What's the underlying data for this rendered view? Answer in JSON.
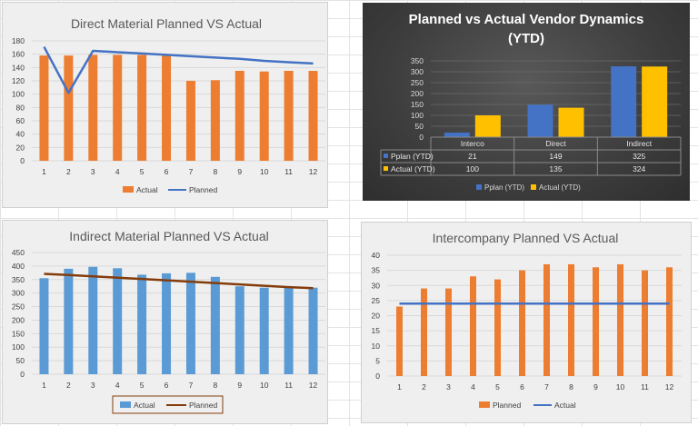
{
  "chart_data": [
    {
      "type": "bar",
      "title": "Direct Material Planned VS Actual",
      "categories": [
        "1",
        "2",
        "3",
        "4",
        "5",
        "6",
        "7",
        "8",
        "9",
        "10",
        "11",
        "12"
      ],
      "ylim": [
        0,
        180
      ],
      "yticks": [
        0,
        20,
        40,
        60,
        80,
        100,
        120,
        140,
        160,
        180
      ],
      "series": [
        {
          "name": "Actual",
          "kind": "bar",
          "color": "#ed7d31",
          "values": [
            158,
            158,
            159,
            159,
            159,
            158,
            120,
            121,
            135,
            134,
            135,
            135
          ]
        },
        {
          "name": "Planned",
          "kind": "line",
          "color": "#4472c4",
          "values": [
            171,
            102,
            165,
            163,
            161,
            159,
            157,
            155,
            153,
            150,
            148,
            146
          ]
        }
      ],
      "legend": "bottom",
      "grid": true
    },
    {
      "type": "bar",
      "title": "Planned vs Actual Vendor Dynamics (YTD)",
      "title_lines": [
        "Planned vs Actual Vendor Dynamics",
        "(YTD)"
      ],
      "categories": [
        "Interco",
        "Direct",
        "Indirect"
      ],
      "ylim": [
        0,
        350
      ],
      "yticks": [
        0,
        50,
        100,
        150,
        200,
        250,
        300,
        350
      ],
      "series": [
        {
          "name": "Pplan (YTD)",
          "color": "#4472c4",
          "values": [
            21,
            149,
            325
          ]
        },
        {
          "name": "Actual (YTD)",
          "color": "#ffc000",
          "values": [
            100,
            135,
            324
          ]
        }
      ],
      "data_table": true,
      "legend": "bottom",
      "grid": true
    },
    {
      "type": "bar",
      "title": "Indirect Material Planned VS Actual",
      "categories": [
        "1",
        "2",
        "3",
        "4",
        "5",
        "6",
        "7",
        "8",
        "9",
        "10",
        "11",
        "12"
      ],
      "ylim": [
        0,
        450
      ],
      "yticks": [
        0,
        50,
        100,
        150,
        200,
        250,
        300,
        350,
        400,
        450
      ],
      "series": [
        {
          "name": "Actual",
          "kind": "bar",
          "color": "#5b9bd5",
          "values": [
            355,
            390,
            397,
            392,
            368,
            373,
            375,
            360,
            325,
            320,
            320,
            320
          ]
        },
        {
          "name": "Planned",
          "kind": "line",
          "color": "#843c0c",
          "values": [
            371,
            367,
            362,
            357,
            352,
            347,
            342,
            337,
            332,
            327,
            322,
            318
          ]
        }
      ],
      "legend": "bottom",
      "grid": true
    },
    {
      "type": "bar",
      "title": "Intercompany Planned VS Actual",
      "categories": [
        "1",
        "2",
        "3",
        "4",
        "5",
        "6",
        "7",
        "8",
        "9",
        "10",
        "11",
        "12"
      ],
      "ylim": [
        0,
        40
      ],
      "yticks": [
        0,
        5,
        10,
        15,
        20,
        25,
        30,
        35,
        40
      ],
      "series": [
        {
          "name": "Planned",
          "kind": "bar",
          "color": "#ed7d31",
          "values": [
            23,
            29,
            29,
            33,
            32,
            35,
            37,
            37,
            36,
            37,
            35,
            36
          ]
        },
        {
          "name": "Actual",
          "kind": "line",
          "color": "#4472c4",
          "values": [
            24,
            24,
            24,
            24,
            24,
            24,
            24,
            24,
            24,
            24,
            24,
            24
          ]
        }
      ],
      "legend": "bottom",
      "grid": true
    }
  ]
}
